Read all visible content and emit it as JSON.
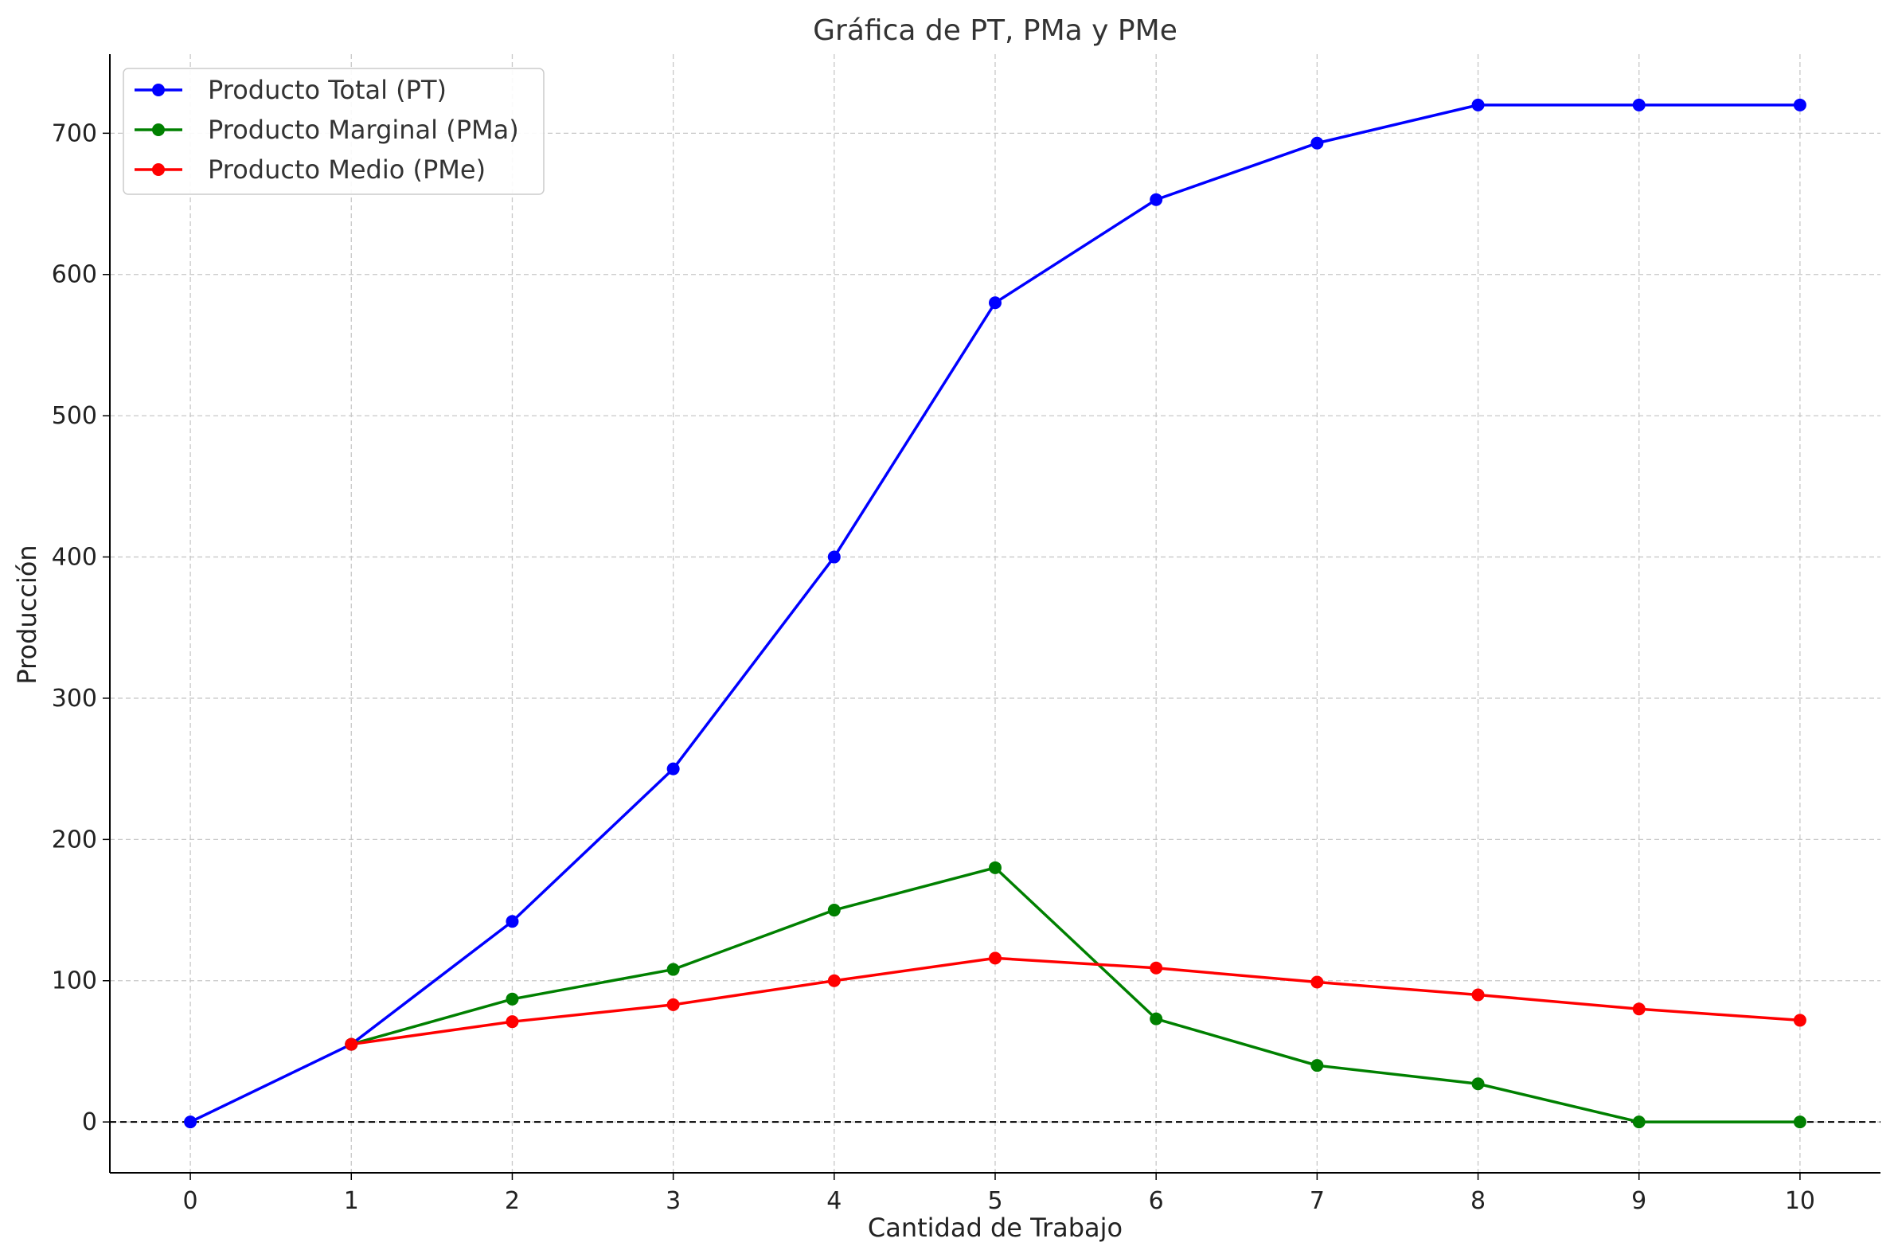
{
  "chart_data": {
    "type": "line",
    "title": "Gráfica de PT, PMa y PMe",
    "xlabel": "Cantidad de Trabajo",
    "ylabel": "Producción",
    "x": [
      0,
      1,
      2,
      3,
      4,
      5,
      6,
      7,
      8,
      9,
      10
    ],
    "xticks": [
      "0",
      "1",
      "2",
      "3",
      "4",
      "5",
      "6",
      "7",
      "8",
      "9",
      "10"
    ],
    "yticks": [
      0,
      100,
      200,
      300,
      400,
      500,
      600,
      700
    ],
    "xlim": [
      -0.5,
      10.5
    ],
    "ylim": [
      -36,
      756
    ],
    "grid": true,
    "legend_position": "top-left",
    "reference_line": {
      "y": 0,
      "style": "dashed",
      "color": "#000000"
    },
    "series": [
      {
        "name": "Producto Total (PT)",
        "color": "#0000ff",
        "x": [
          0,
          1,
          2,
          3,
          4,
          5,
          6,
          7,
          8,
          9,
          10
        ],
        "values": [
          0,
          55,
          142,
          250,
          400,
          580,
          653,
          693,
          720,
          720,
          720
        ]
      },
      {
        "name": "Producto Marginal (PMa)",
        "color": "#008000",
        "x": [
          1,
          2,
          3,
          4,
          5,
          6,
          7,
          8,
          9,
          10
        ],
        "values": [
          55,
          87,
          108,
          150,
          180,
          73,
          40,
          27,
          0,
          0
        ]
      },
      {
        "name": "Producto Medio (PMe)",
        "color": "#ff0000",
        "x": [
          1,
          2,
          3,
          4,
          5,
          6,
          7,
          8,
          9,
          10
        ],
        "values": [
          55,
          71,
          83,
          100,
          116,
          109,
          99,
          90,
          80,
          72
        ]
      }
    ]
  }
}
